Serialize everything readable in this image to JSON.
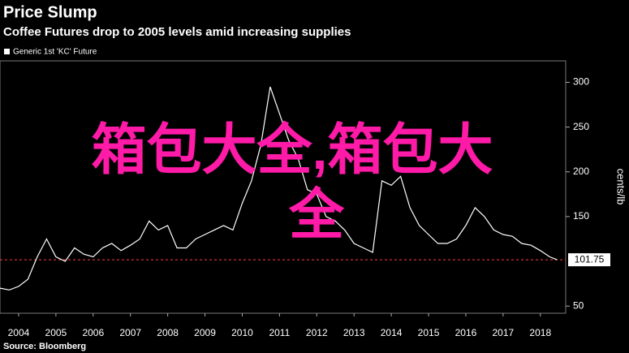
{
  "chart_data": {
    "type": "line",
    "title": "Price Slump",
    "subtitle": "Coffee Futures drop to 2005 levels amid increasing supplies",
    "y_label": "cents/lb",
    "source": "Source: Bloomberg",
    "watermark": "箱包大全,箱包大全",
    "x": [
      2004.0,
      2004.25,
      2004.5,
      2004.75,
      2005.0,
      2005.25,
      2005.5,
      2005.75,
      2006.0,
      2006.25,
      2006.5,
      2006.75,
      2007.0,
      2007.25,
      2007.5,
      2007.75,
      2008.0,
      2008.25,
      2008.5,
      2008.75,
      2009.0,
      2009.25,
      2009.5,
      2009.75,
      2010.0,
      2010.25,
      2010.5,
      2010.75,
      2011.0,
      2011.25,
      2011.5,
      2011.75,
      2012.0,
      2012.25,
      2012.5,
      2012.75,
      2013.0,
      2013.25,
      2013.5,
      2013.75,
      2014.0,
      2014.25,
      2014.5,
      2014.75,
      2015.0,
      2015.25,
      2015.5,
      2015.75,
      2016.0,
      2016.25,
      2016.5,
      2016.75,
      2017.0,
      2017.25,
      2017.5,
      2017.75,
      2018.0,
      2018.25,
      2018.5,
      2018.75,
      2018.95
    ],
    "series": [
      {
        "name": "Generic 1st 'KC' Future",
        "color": "#ffffff",
        "values": [
          70,
          68,
          72,
          80,
          105,
          125,
          105,
          100,
          115,
          108,
          105,
          115,
          120,
          112,
          118,
          125,
          145,
          135,
          140,
          115,
          115,
          125,
          130,
          135,
          140,
          135,
          165,
          190,
          230,
          295,
          265,
          235,
          215,
          180,
          175,
          150,
          145,
          135,
          120,
          115,
          110,
          190,
          185,
          195,
          160,
          140,
          130,
          120,
          120,
          125,
          140,
          160,
          150,
          135,
          130,
          128,
          120,
          118,
          112,
          105,
          101.75
        ]
      }
    ],
    "last_value": 101.75,
    "last_value_color": "#ff3b3b",
    "xlim": [
      2004,
      2019.18
    ],
    "xticks": [
      {
        "value": 2004.5,
        "label": "2004"
      },
      {
        "value": 2005.5,
        "label": "2005"
      },
      {
        "value": 2006.5,
        "label": "2006"
      },
      {
        "value": 2007.5,
        "label": "2007"
      },
      {
        "value": 2008.5,
        "label": "2008"
      },
      {
        "value": 2009.5,
        "label": "2009"
      },
      {
        "value": 2010.5,
        "label": "2010"
      },
      {
        "value": 2011.5,
        "label": "2011"
      },
      {
        "value": 2012.5,
        "label": "2012"
      },
      {
        "value": 2013.5,
        "label": "2013"
      },
      {
        "value": 2014.5,
        "label": "2014"
      },
      {
        "value": 2015.5,
        "label": "2015"
      },
      {
        "value": 2016.5,
        "label": "2016"
      },
      {
        "value": 2017.5,
        "label": "2017"
      },
      {
        "value": 2018.5,
        "label": "2018"
      }
    ],
    "ylim": [
      42,
      324
    ],
    "yticks": [
      50,
      150,
      200,
      250,
      300
    ]
  }
}
